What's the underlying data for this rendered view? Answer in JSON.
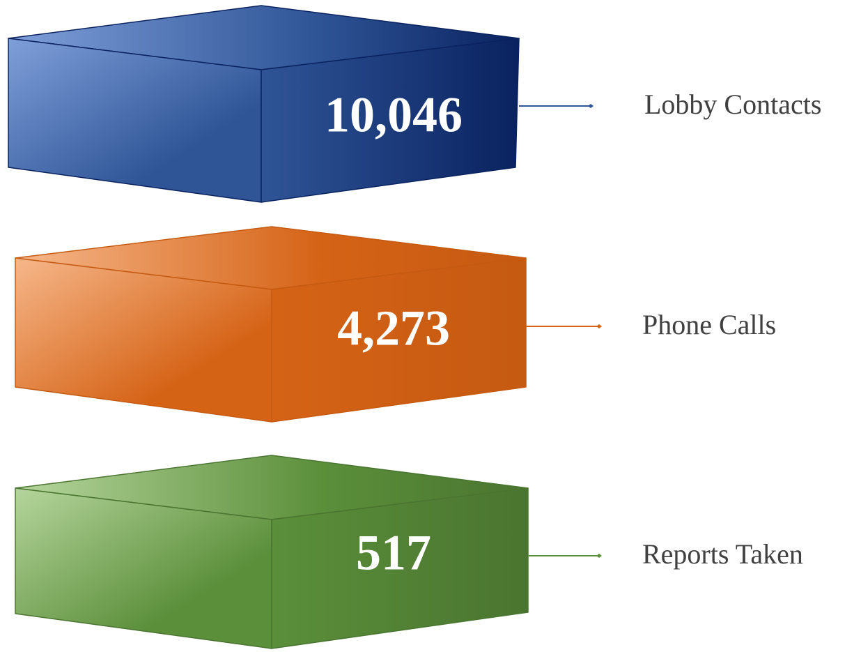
{
  "items": [
    {
      "value": "10,046",
      "label": "Lobby Contacts",
      "color": "#2f5597",
      "light": "#7f9fd9",
      "dark": "#0a2260"
    },
    {
      "value": "4,273",
      "label": "Phone Calls",
      "color": "#d56316",
      "light": "#f6b78a",
      "dark": "#c55a11"
    },
    {
      "value": "517",
      "label": "Reports Taken",
      "color": "#5b8f3a",
      "light": "#b5d59c",
      "dark": "#4a7530"
    }
  ]
}
